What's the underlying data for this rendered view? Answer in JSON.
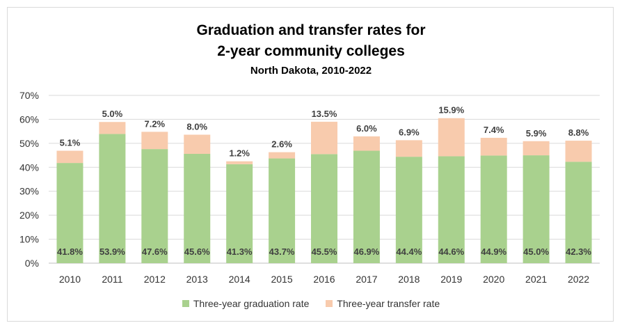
{
  "chart_data": {
    "type": "bar",
    "stacked": true,
    "title_line1": "Graduation and transfer rates for",
    "title_line2": "2-year community colleges",
    "subtitle": "North Dakota, 2010-2022",
    "categories": [
      "2010",
      "2011",
      "2012",
      "2013",
      "2014",
      "2015",
      "2016",
      "2017",
      "2018",
      "2019",
      "2020",
      "2021",
      "2022"
    ],
    "series": [
      {
        "name": "Three-year graduation rate",
        "color": "#a9d18e",
        "values": [
          41.8,
          53.9,
          47.6,
          45.6,
          41.3,
          43.7,
          45.5,
          46.9,
          44.4,
          44.6,
          44.9,
          45.0,
          42.3
        ]
      },
      {
        "name": "Three-year transfer rate",
        "color": "#f8cbad",
        "values": [
          5.1,
          5.0,
          7.2,
          8.0,
          1.2,
          2.6,
          13.5,
          6.0,
          6.9,
          15.9,
          7.4,
          5.9,
          8.8
        ]
      }
    ],
    "ylim": [
      0,
      70
    ],
    "yticks": [
      "0%",
      "10%",
      "20%",
      "30%",
      "40%",
      "50%",
      "60%",
      "70%"
    ],
    "grid": true,
    "legend_position": "bottom"
  }
}
